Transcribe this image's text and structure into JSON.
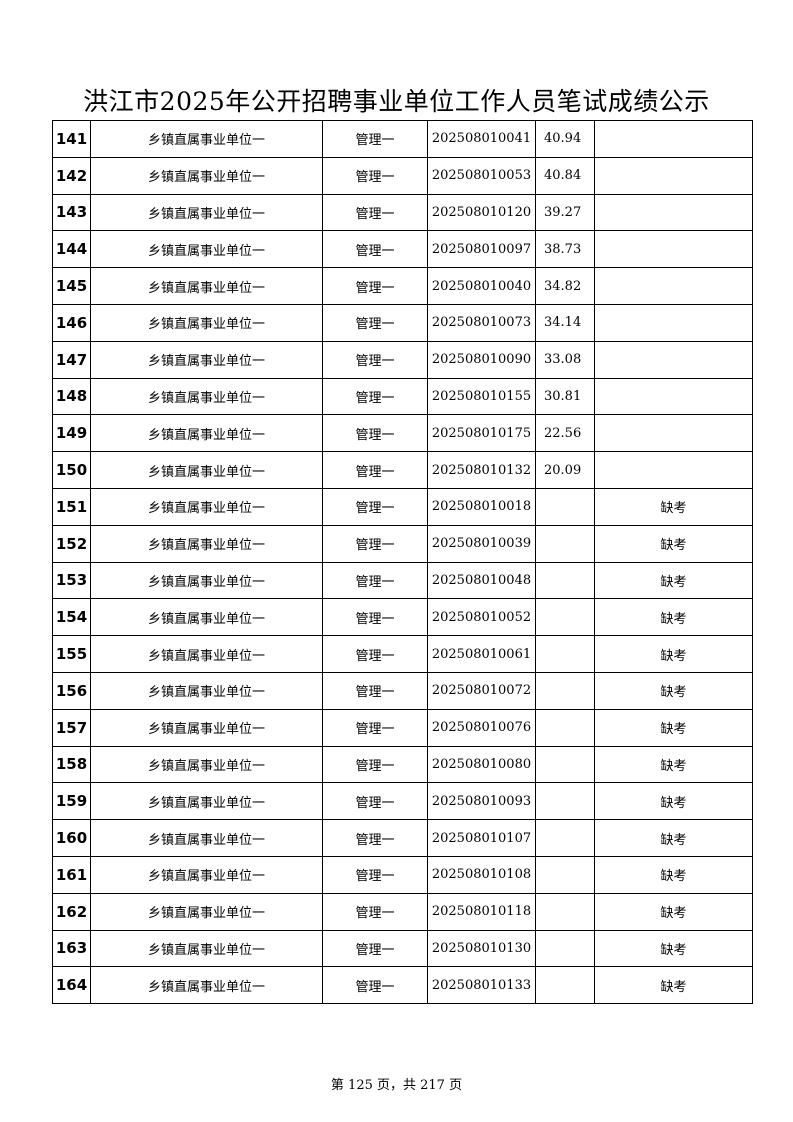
{
  "title": "洪江市2025年公开招聘事业单位工作人员笔试成绩公示",
  "rows": [
    {
      "no": "141",
      "unit": "乡镇直属事业单位一",
      "post": "管理一",
      "ticket": "202508010041",
      "score": "40.94",
      "note": ""
    },
    {
      "no": "142",
      "unit": "乡镇直属事业单位一",
      "post": "管理一",
      "ticket": "202508010053",
      "score": "40.84",
      "note": ""
    },
    {
      "no": "143",
      "unit": "乡镇直属事业单位一",
      "post": "管理一",
      "ticket": "202508010120",
      "score": "39.27",
      "note": ""
    },
    {
      "no": "144",
      "unit": "乡镇直属事业单位一",
      "post": "管理一",
      "ticket": "202508010097",
      "score": "38.73",
      "note": ""
    },
    {
      "no": "145",
      "unit": "乡镇直属事业单位一",
      "post": "管理一",
      "ticket": "202508010040",
      "score": "34.82",
      "note": ""
    },
    {
      "no": "146",
      "unit": "乡镇直属事业单位一",
      "post": "管理一",
      "ticket": "202508010073",
      "score": "34.14",
      "note": ""
    },
    {
      "no": "147",
      "unit": "乡镇直属事业单位一",
      "post": "管理一",
      "ticket": "202508010090",
      "score": "33.08",
      "note": ""
    },
    {
      "no": "148",
      "unit": "乡镇直属事业单位一",
      "post": "管理一",
      "ticket": "202508010155",
      "score": "30.81",
      "note": ""
    },
    {
      "no": "149",
      "unit": "乡镇直属事业单位一",
      "post": "管理一",
      "ticket": "202508010175",
      "score": "22.56",
      "note": ""
    },
    {
      "no": "150",
      "unit": "乡镇直属事业单位一",
      "post": "管理一",
      "ticket": "202508010132",
      "score": "20.09",
      "note": ""
    },
    {
      "no": "151",
      "unit": "乡镇直属事业单位一",
      "post": "管理一",
      "ticket": "202508010018",
      "score": "",
      "note": "缺考"
    },
    {
      "no": "152",
      "unit": "乡镇直属事业单位一",
      "post": "管理一",
      "ticket": "202508010039",
      "score": "",
      "note": "缺考"
    },
    {
      "no": "153",
      "unit": "乡镇直属事业单位一",
      "post": "管理一",
      "ticket": "202508010048",
      "score": "",
      "note": "缺考"
    },
    {
      "no": "154",
      "unit": "乡镇直属事业单位一",
      "post": "管理一",
      "ticket": "202508010052",
      "score": "",
      "note": "缺考"
    },
    {
      "no": "155",
      "unit": "乡镇直属事业单位一",
      "post": "管理一",
      "ticket": "202508010061",
      "score": "",
      "note": "缺考"
    },
    {
      "no": "156",
      "unit": "乡镇直属事业单位一",
      "post": "管理一",
      "ticket": "202508010072",
      "score": "",
      "note": "缺考"
    },
    {
      "no": "157",
      "unit": "乡镇直属事业单位一",
      "post": "管理一",
      "ticket": "202508010076",
      "score": "",
      "note": "缺考"
    },
    {
      "no": "158",
      "unit": "乡镇直属事业单位一",
      "post": "管理一",
      "ticket": "202508010080",
      "score": "",
      "note": "缺考"
    },
    {
      "no": "159",
      "unit": "乡镇直属事业单位一",
      "post": "管理一",
      "ticket": "202508010093",
      "score": "",
      "note": "缺考"
    },
    {
      "no": "160",
      "unit": "乡镇直属事业单位一",
      "post": "管理一",
      "ticket": "202508010107",
      "score": "",
      "note": "缺考"
    },
    {
      "no": "161",
      "unit": "乡镇直属事业单位一",
      "post": "管理一",
      "ticket": "202508010108",
      "score": "",
      "note": "缺考"
    },
    {
      "no": "162",
      "unit": "乡镇直属事业单位一",
      "post": "管理一",
      "ticket": "202508010118",
      "score": "",
      "note": "缺考"
    },
    {
      "no": "163",
      "unit": "乡镇直属事业单位一",
      "post": "管理一",
      "ticket": "202508010130",
      "score": "",
      "note": "缺考"
    },
    {
      "no": "164",
      "unit": "乡镇直属事业单位一",
      "post": "管理一",
      "ticket": "202508010133",
      "score": "",
      "note": "缺考"
    }
  ],
  "footer": "第 125 页，共 217 页"
}
